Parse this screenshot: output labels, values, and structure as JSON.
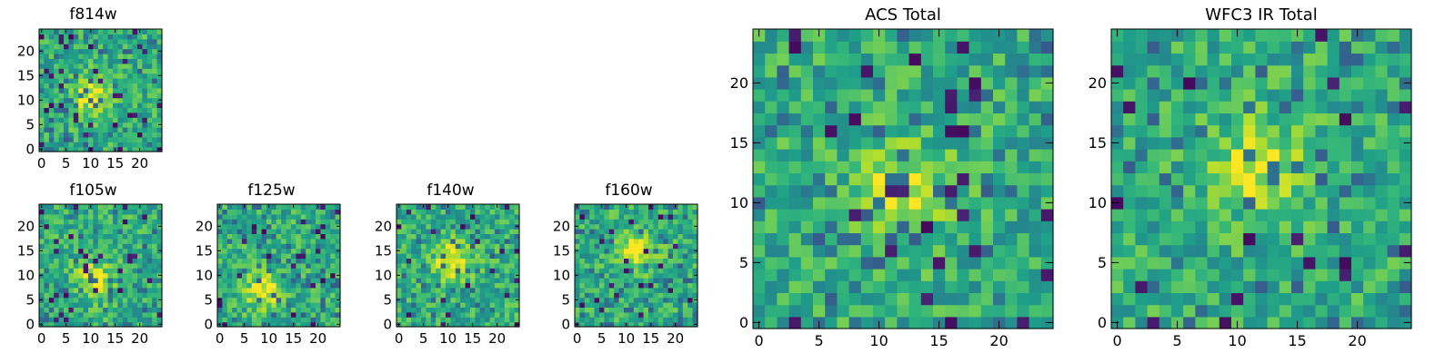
{
  "chart_data": [
    {
      "type": "heatmap",
      "title": "f814w",
      "grid_size": 25,
      "xticks": [
        "0",
        "5",
        "10",
        "15",
        "20"
      ],
      "yticks": [
        "0",
        "5",
        "10",
        "15",
        "20"
      ],
      "colormap": "viridis",
      "seed": 11,
      "blob_center": [
        10,
        11
      ],
      "blob_strength": 0.55,
      "dark_fraction": 0.05
    },
    {
      "type": "heatmap",
      "title": "f105w",
      "grid_size": 25,
      "xticks": [
        "0",
        "5",
        "10",
        "15",
        "20"
      ],
      "yticks": [
        "0",
        "5",
        "10",
        "15",
        "20"
      ],
      "colormap": "viridis",
      "seed": 23,
      "blob_center": [
        11,
        9
      ],
      "blob_strength": 0.6,
      "dark_fraction": 0.04
    },
    {
      "type": "heatmap",
      "title": "f125w",
      "grid_size": 25,
      "xticks": [
        "0",
        "5",
        "10",
        "15",
        "20"
      ],
      "yticks": [
        "0",
        "5",
        "10",
        "15",
        "20"
      ],
      "colormap": "viridis",
      "seed": 37,
      "blob_center": [
        9,
        7
      ],
      "blob_strength": 0.6,
      "dark_fraction": 0.04
    },
    {
      "type": "heatmap",
      "title": "f140w",
      "grid_size": 25,
      "xticks": [
        "0",
        "5",
        "10",
        "15",
        "20"
      ],
      "yticks": [
        "0",
        "5",
        "10",
        "15",
        "20"
      ],
      "colormap": "viridis",
      "seed": 41,
      "blob_center": [
        11,
        13
      ],
      "blob_strength": 0.65,
      "dark_fraction": 0.04
    },
    {
      "type": "heatmap",
      "title": "f160w",
      "grid_size": 25,
      "xticks": [
        "0",
        "5",
        "10",
        "15",
        "20"
      ],
      "yticks": [
        "0",
        "5",
        "10",
        "15",
        "20"
      ],
      "colormap": "viridis",
      "seed": 53,
      "blob_center": [
        12,
        15
      ],
      "blob_strength": 0.65,
      "dark_fraction": 0.04
    },
    {
      "type": "heatmap",
      "title": "ACS Total",
      "grid_size": 25,
      "xticks": [
        "0",
        "5",
        "10",
        "15",
        "20"
      ],
      "yticks": [
        "0",
        "5",
        "10",
        "15",
        "20"
      ],
      "colormap": "viridis",
      "seed": 67,
      "blob_center": [
        12,
        11
      ],
      "blob_strength": 0.55,
      "dark_fraction": 0.035
    },
    {
      "type": "heatmap",
      "title": "WFC3 IR Total",
      "grid_size": 25,
      "xticks": [
        "0",
        "5",
        "10",
        "15",
        "20"
      ],
      "yticks": [
        "0",
        "5",
        "10",
        "15",
        "20"
      ],
      "colormap": "viridis",
      "seed": 79,
      "blob_center": [
        12,
        13
      ],
      "blob_strength": 0.55,
      "dark_fraction": 0.035
    }
  ]
}
